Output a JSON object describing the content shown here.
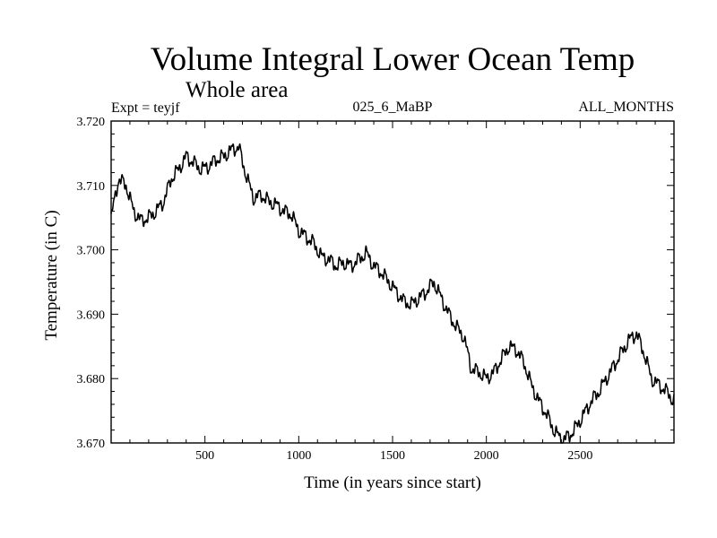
{
  "chart_data": {
    "type": "line",
    "title": "Volume Integral Lower Ocean Temp",
    "subtitle": "Whole area",
    "left_note": "Expt = teyjf",
    "center_note": "025_6_MaBP",
    "right_note": "ALL_MONTHS",
    "xlabel": "Time (in years since start)",
    "ylabel": "Temperature (in C)",
    "xlim": [
      0,
      3000
    ],
    "ylim": [
      3.67,
      3.72
    ],
    "xticks": [
      500,
      1000,
      1500,
      2000,
      2500
    ],
    "xtick_labels": [
      "500",
      "1000",
      "1500",
      "2000",
      "2500"
    ],
    "yticks": [
      3.67,
      3.68,
      3.69,
      3.7,
      3.71,
      3.72
    ],
    "ytick_labels": [
      "3.670",
      "3.680",
      "3.690",
      "3.700",
      "3.710",
      "3.720"
    ],
    "series": [
      {
        "name": "Volume integral lower ocean temperature",
        "color": "#000000",
        "x": [
          0,
          40,
          80,
          120,
          160,
          200,
          240,
          280,
          320,
          360,
          400,
          440,
          480,
          520,
          560,
          600,
          640,
          680,
          720,
          760,
          800,
          840,
          880,
          920,
          960,
          1000,
          1040,
          1080,
          1120,
          1160,
          1200,
          1240,
          1280,
          1320,
          1360,
          1400,
          1440,
          1480,
          1520,
          1560,
          1600,
          1640,
          1680,
          1720,
          1760,
          1800,
          1840,
          1880,
          1920,
          1960,
          2000,
          2040,
          2080,
          2120,
          2160,
          2200,
          2240,
          2280,
          2320,
          2360,
          2400,
          2440,
          2480,
          2520,
          2560,
          2600,
          2640,
          2680,
          2720,
          2760,
          2800,
          2840,
          2880,
          2920,
          2960,
          3000
        ],
        "values": [
          3.705,
          3.711,
          3.71,
          3.706,
          3.7045,
          3.705,
          3.706,
          3.7075,
          3.711,
          3.7125,
          3.7145,
          3.7135,
          3.7125,
          3.713,
          3.714,
          3.7145,
          3.7155,
          3.716,
          3.7115,
          3.708,
          3.7085,
          3.7075,
          3.707,
          3.706,
          3.7055,
          3.703,
          3.702,
          3.701,
          3.699,
          3.6985,
          3.6975,
          3.698,
          3.6975,
          3.6985,
          3.6995,
          3.6975,
          3.6965,
          3.695,
          3.6935,
          3.692,
          3.6915,
          3.6925,
          3.6935,
          3.695,
          3.6925,
          3.69,
          3.688,
          3.6865,
          3.6815,
          3.681,
          3.68,
          3.681,
          3.683,
          3.685,
          3.6845,
          3.6825,
          3.679,
          3.6765,
          3.6745,
          3.672,
          3.6705,
          3.671,
          3.6725,
          3.6745,
          3.6765,
          3.678,
          3.68,
          3.682,
          3.684,
          3.686,
          3.687,
          3.684,
          3.68,
          3.679,
          3.678,
          3.6765
        ]
      }
    ]
  }
}
